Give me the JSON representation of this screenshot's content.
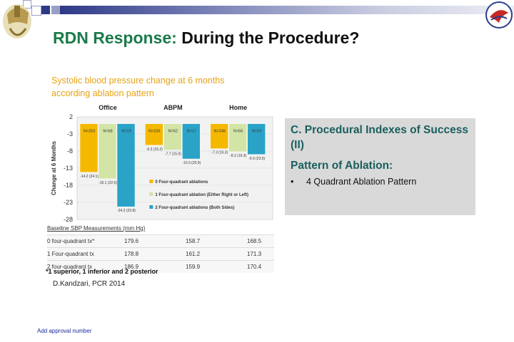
{
  "slide": {
    "title_part1": "RDN Response:",
    "title_part2": "During the Procedure?",
    "citation": "D.Kandzari, PCR 2014",
    "footnote": "*1 superior, 1 inferior and 2 posterior",
    "approval": "Add approval number"
  },
  "panel": {
    "heading": "C. Procedural Indexes of Success (II)",
    "subheading": "Pattern of Ablation:",
    "bullet": "4 Quadrant Ablation Pattern"
  },
  "baseline": {
    "header": "Baseline SBP Measurements (mm Hg)",
    "rows": [
      {
        "label": "0 four-quadrant tx*",
        "office": "179.6",
        "abpm": "158.7",
        "home": "168.5"
      },
      {
        "label": "1 Four-quadrant tx",
        "office": "178.8",
        "abpm": "161.2",
        "home": "171.3"
      },
      {
        "label": "2 four-quadrant tx",
        "office": "186.9",
        "abpm": "159.9",
        "home": "170.4"
      }
    ]
  },
  "colors": {
    "zero": "#f5b800",
    "one": "#d2e4a6",
    "two": "#2aa3c7",
    "title_green": "#1b7a4a",
    "chart_title": "#e6a317",
    "panel_bg": "#d9d9d9",
    "panel_text": "#1b5e5e"
  },
  "icons": {
    "left": "helmet-logo-icon",
    "right": "society-logo-icon"
  },
  "chart_data": {
    "type": "bar",
    "title": "Systolic blood pressure change at 6 months according ablation pattern",
    "ylabel": "Change at 6 Months",
    "ylim": [
      -28,
      2
    ],
    "yticks": [
      2,
      -3,
      -8,
      -13,
      -18,
      -23,
      -28
    ],
    "categories": [
      "Office",
      "ABPM",
      "Home"
    ],
    "series": [
      {
        "name": "0 Four-quadrant ablations",
        "values": [
          -14.2,
          -6.3,
          -7.3
        ],
        "labels": [
          "-14.2 (24.1)",
          "-6.3 (15.2)",
          "-7.3 (16.3)"
        ],
        "n": [
          "N=253",
          "N=236",
          "N=248"
        ]
      },
      {
        "name": "1 Four-quadrant ablation (Either Right or Left)",
        "values": [
          -16.1,
          -7.7,
          -8.2
        ],
        "labels": [
          "-16.1 (22.6)",
          "-7.7 (15.9)",
          "-8.2 (16.3)"
        ],
        "n": [
          "N=68",
          "N=62",
          "N=66"
        ]
      },
      {
        "name": "2 Four-quadrant ablations (Both Sides)",
        "values": [
          -24.3,
          -10.3,
          -9.0
        ],
        "labels": [
          "-24.3 (23.8)",
          "-10.3 (20.9)",
          "-9.0 (23.5)"
        ],
        "n": [
          "N=19",
          "N=17",
          "N=19"
        ]
      }
    ]
  }
}
